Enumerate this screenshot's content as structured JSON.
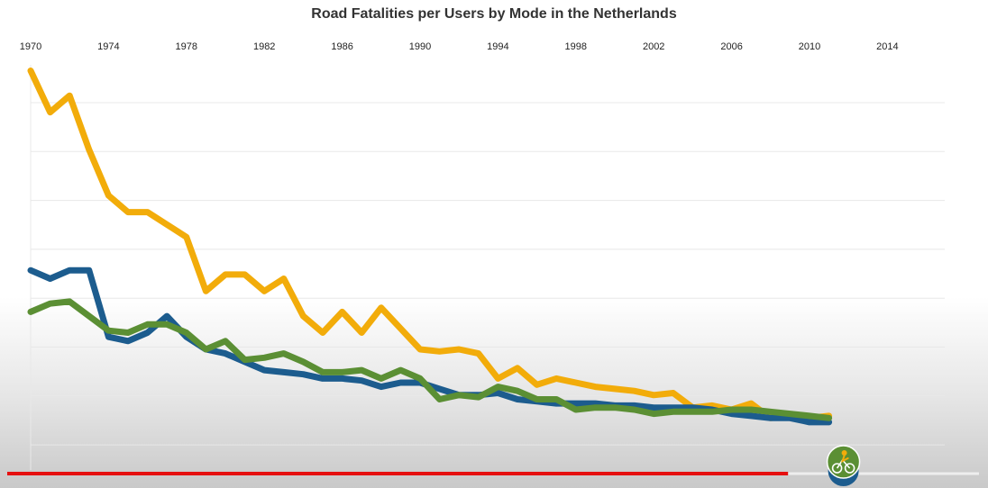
{
  "chart_data": {
    "type": "line",
    "title": "Road Fatalities per Users by Mode in the Netherlands",
    "xlabel": "",
    "ylabel": "",
    "x_ticks": [
      "1970",
      "1974",
      "1978",
      "1982",
      "1986",
      "1990",
      "1994",
      "1998",
      "2002",
      "2006",
      "2010",
      "2014"
    ],
    "xlim": [
      1970,
      2017
    ],
    "ylim": [
      0,
      100
    ],
    "grid": true,
    "x": [
      1970,
      1971,
      1972,
      1973,
      1974,
      1975,
      1976,
      1977,
      1978,
      1979,
      1980,
      1981,
      1982,
      1983,
      1984,
      1985,
      1986,
      1987,
      1988,
      1989,
      1990,
      1991,
      1992,
      1993,
      1994,
      1995,
      1996,
      1997,
      1998,
      1999,
      2000,
      2001,
      2002,
      2003,
      2004,
      2005,
      2006,
      2007,
      2008,
      2009,
      2010,
      2011
    ],
    "series": [
      {
        "color": "#f2ac0a",
        "values": [
          96,
          86,
          90,
          77,
          66,
          62,
          62,
          59,
          56,
          43,
          47,
          47,
          43,
          46,
          37,
          33,
          38,
          33,
          39,
          34,
          29,
          28.5,
          29,
          28,
          22,
          24.5,
          20.5,
          22,
          21,
          20,
          19.5,
          19,
          18,
          18.5,
          15,
          15.5,
          14.5,
          16,
          12.5,
          13,
          12.5,
          13
        ]
      },
      {
        "color": "#1c5c8e",
        "values": [
          48,
          46,
          48,
          48,
          32,
          31,
          33,
          37,
          32,
          29,
          28,
          26,
          24,
          23.5,
          23,
          22,
          22,
          21.5,
          20,
          21,
          21,
          19.5,
          18,
          18,
          18.5,
          17,
          16.5,
          16,
          16,
          16,
          15.5,
          15.5,
          15,
          15,
          15,
          14.5,
          13.5,
          13,
          12.5,
          12.5,
          11.5,
          11.5
        ]
      },
      {
        "color": "#5b8f34",
        "values": [
          38,
          40,
          40.5,
          37,
          33.5,
          33,
          35,
          35,
          33,
          29,
          31,
          26.5,
          27,
          28,
          26,
          23.5,
          23.5,
          24,
          22,
          24,
          22,
          17,
          18,
          17.5,
          20,
          19,
          17,
          17,
          14.5,
          15,
          15,
          14.5,
          13.5,
          14,
          14,
          14,
          14.5,
          14.5,
          14,
          13.5,
          13,
          12.5
        ]
      }
    ],
    "playback": {
      "progress_start": 1970,
      "progress_end": 2008.9,
      "progress_color": "#e61010",
      "track_color": "#eeeeee"
    }
  },
  "marker_icon": "cyclist-icon"
}
